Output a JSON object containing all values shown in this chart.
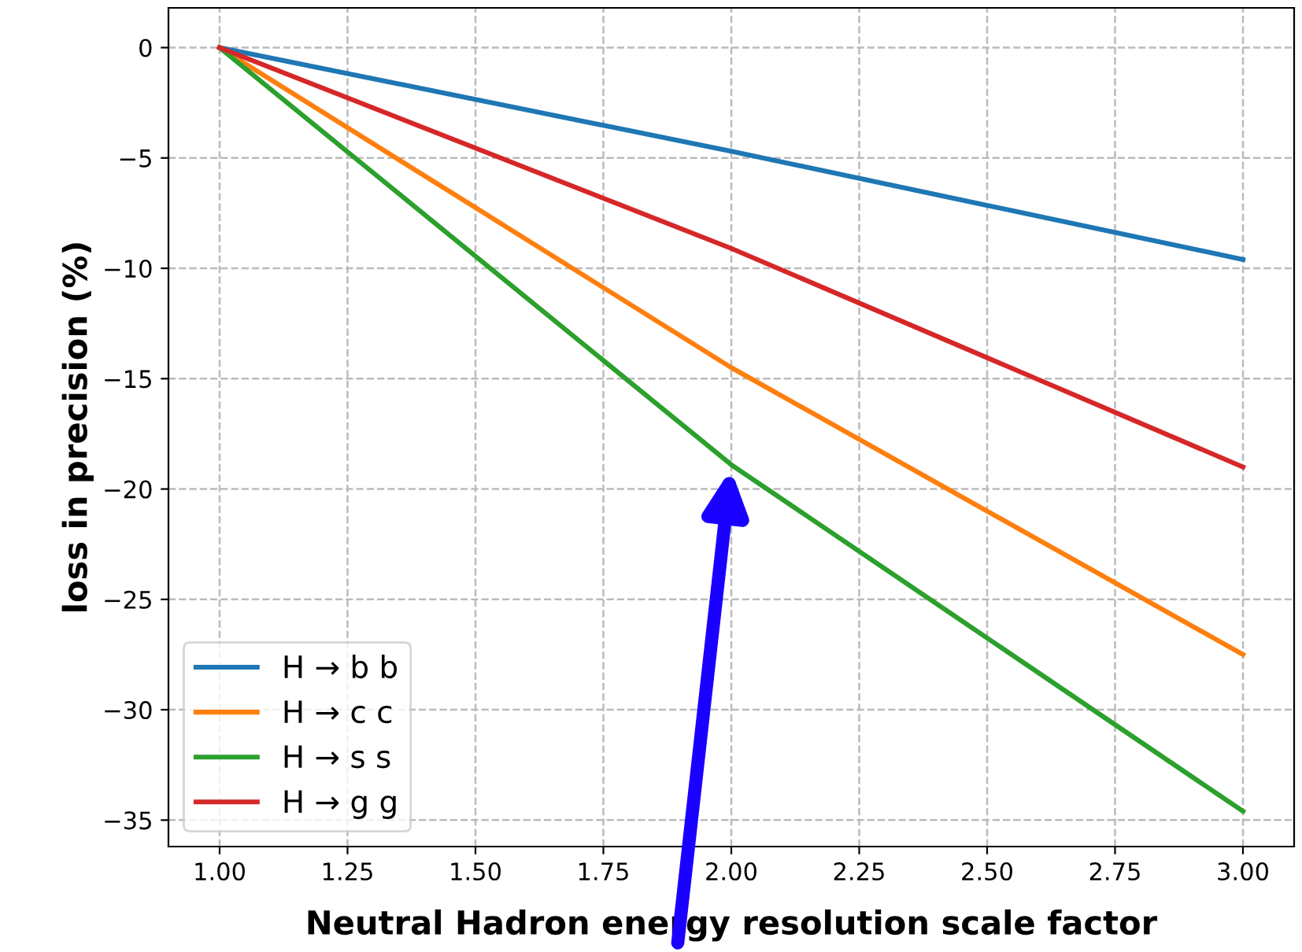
{
  "chart_data": {
    "type": "line",
    "xlabel": "Neutral Hadron energy resolution scale factor",
    "ylabel": "loss in precision (%)",
    "x": [
      1.0,
      2.0,
      3.0
    ],
    "series": [
      {
        "name": "H → b b",
        "color": "#1f77b4",
        "values": [
          0,
          -4.7,
          -9.6
        ]
      },
      {
        "name": "H → c c",
        "color": "#ff7f0e",
        "values": [
          0,
          -14.5,
          -27.5
        ]
      },
      {
        "name": "H → s s",
        "color": "#2ca02c",
        "values": [
          0,
          -18.9,
          -34.6
        ]
      },
      {
        "name": "H → g g",
        "color": "#d62728",
        "values": [
          0,
          -9.1,
          -19.0
        ]
      }
    ],
    "xlim": [
      0.9,
      3.1
    ],
    "ylim": [
      -36.2,
      1.8
    ],
    "xticks": [
      {
        "value": 1.0,
        "label": "1.00"
      },
      {
        "value": 1.25,
        "label": "1.25"
      },
      {
        "value": 1.5,
        "label": "1.50"
      },
      {
        "value": 1.75,
        "label": "1.75"
      },
      {
        "value": 2.0,
        "label": "2.00"
      },
      {
        "value": 2.25,
        "label": "2.25"
      },
      {
        "value": 2.5,
        "label": "2.50"
      },
      {
        "value": 2.75,
        "label": "2.75"
      },
      {
        "value": 3.0,
        "label": "3.00"
      }
    ],
    "yticks": [
      {
        "value": 0,
        "label": "0"
      },
      {
        "value": -5,
        "label": "−5"
      },
      {
        "value": -10,
        "label": "−10"
      },
      {
        "value": -15,
        "label": "−15"
      },
      {
        "value": -20,
        "label": "−20"
      },
      {
        "value": -25,
        "label": "−25"
      },
      {
        "value": -30,
        "label": "−30"
      },
      {
        "value": -35,
        "label": "−35"
      }
    ],
    "grid": true,
    "legend": "bottom left",
    "line_style": "solid",
    "marker": "none"
  }
}
